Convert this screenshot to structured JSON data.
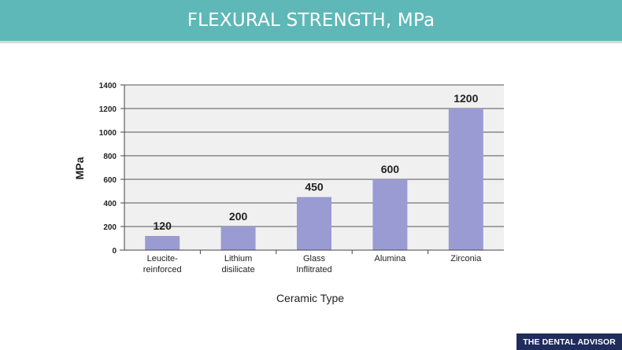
{
  "header": {
    "title": "FLEXURAL STRENGTH, MPa"
  },
  "watermark": "THE DENTAL ADVISOR",
  "colors": {
    "header": "#5fb8b8",
    "bar": "#9b9bd3",
    "plot_bg": "#f0f0f0"
  },
  "chart_data": {
    "type": "bar",
    "title": "",
    "xlabel": "Ceramic Type",
    "ylabel": "MPa",
    "ylim": [
      0,
      1400
    ],
    "yticks": [
      0,
      200,
      400,
      600,
      800,
      1000,
      1200,
      1400
    ],
    "grid": true,
    "categories": [
      [
        "Leucite-",
        "reinforced"
      ],
      [
        "Lithium",
        "disilicate"
      ],
      [
        "Glass",
        "Inflitrated"
      ],
      [
        "Alumina"
      ],
      [
        "Zirconia"
      ]
    ],
    "values": [
      120,
      200,
      450,
      600,
      1200
    ],
    "data_labels": [
      "120",
      "200",
      "450",
      "600",
      "1200"
    ]
  }
}
